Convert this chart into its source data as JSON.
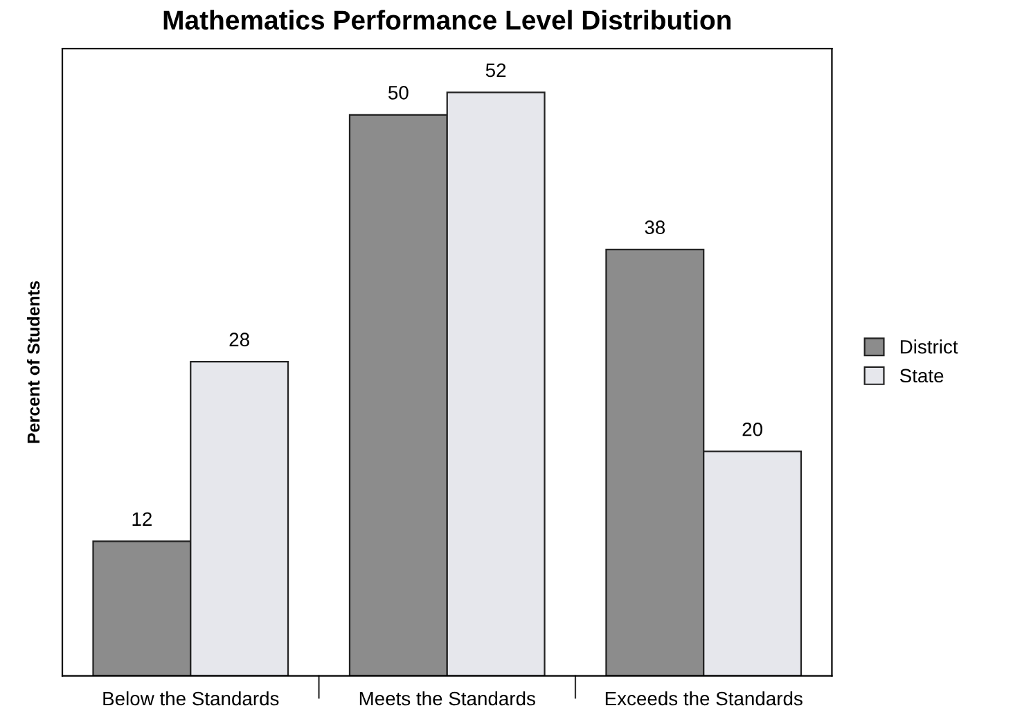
{
  "chart_data": {
    "type": "bar",
    "title": "Mathematics Performance Level Distribution",
    "ylabel": "Percent of Students",
    "categories": [
      "Below the Standards",
      "Meets the Standards",
      "Exceeds the Standards"
    ],
    "series": [
      {
        "name": "District",
        "color": "#8c8c8c",
        "values": [
          12,
          50,
          38
        ]
      },
      {
        "name": "State",
        "color": "#e6e7ec",
        "values": [
          28,
          52,
          20
        ]
      }
    ],
    "data_labels": true,
    "legend": "right",
    "grid": false
  }
}
